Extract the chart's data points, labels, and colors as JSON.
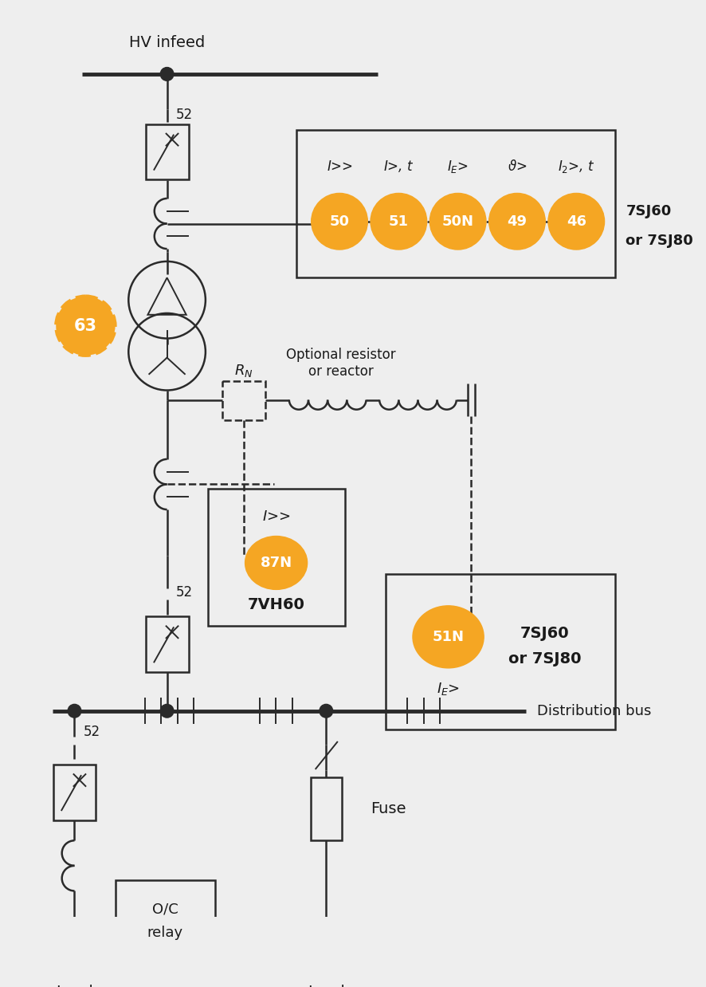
{
  "bg_color": "#eeeeee",
  "orange": "#F5A623",
  "line_color": "#2a2a2a",
  "text_color": "#1a1a1a",
  "relay_labels_top": [
    "50",
    "51",
    "50N",
    "49",
    "46"
  ],
  "relay_model_top": [
    "7SJ60",
    "or 7SJ80"
  ],
  "relay_87N_label": "87N",
  "relay_87N_model": "7VH60",
  "relay_51N_label": "51N",
  "relay_51N_model": [
    "7SJ60",
    "or 7SJ80"
  ],
  "relay_63_label": "63"
}
